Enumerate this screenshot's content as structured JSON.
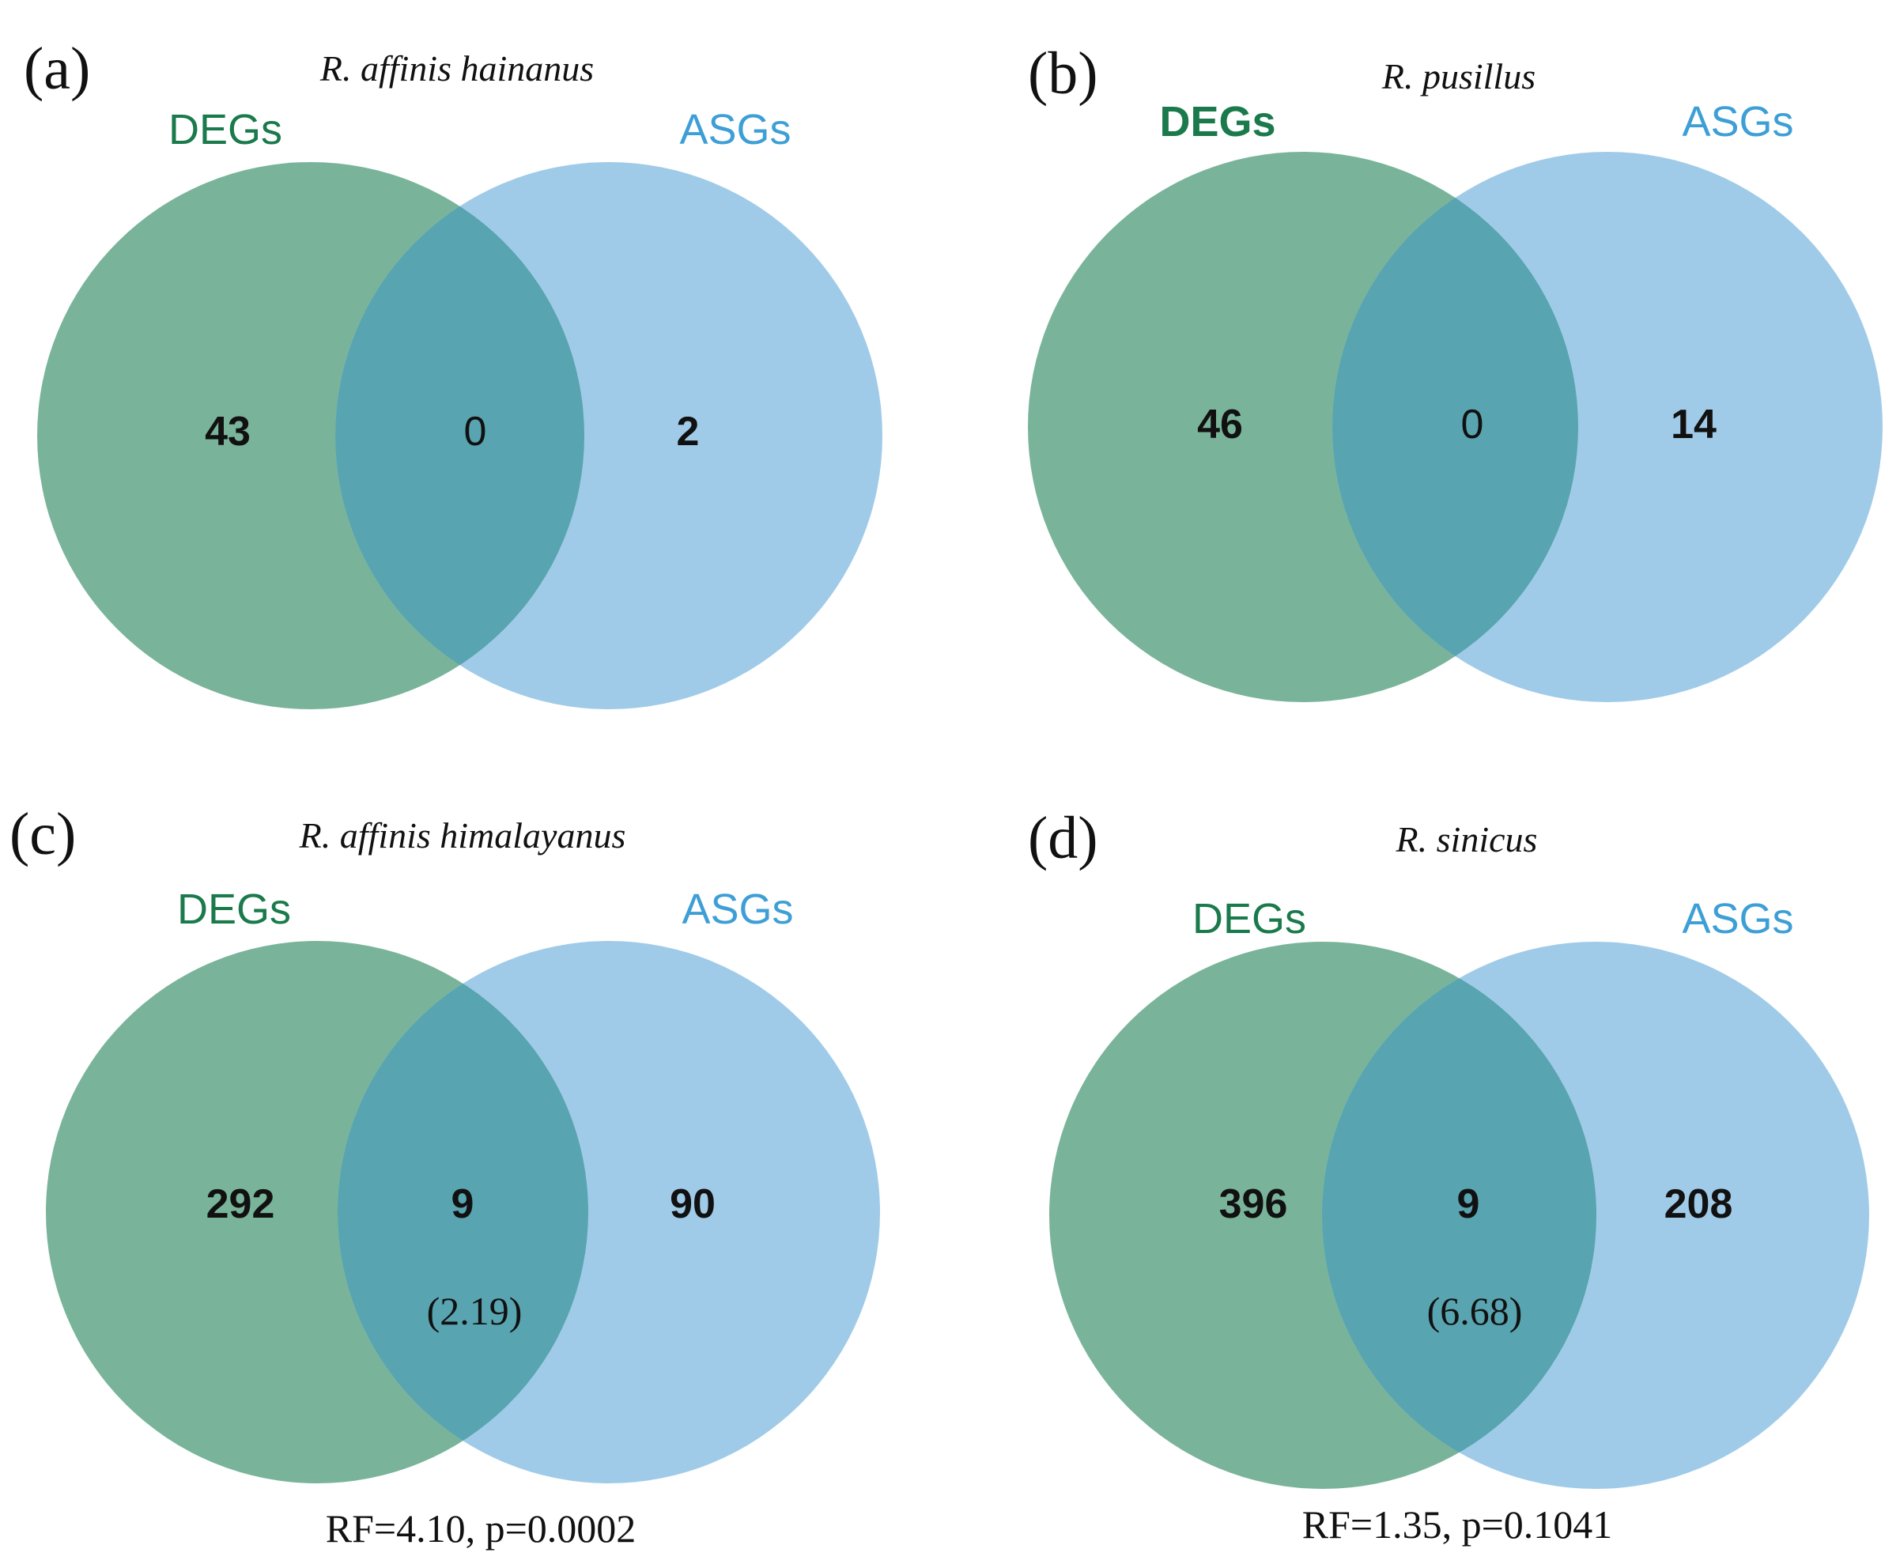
{
  "panels": [
    {
      "letter": "(a)",
      "species": "R. affinis hainanus",
      "left_label": "DEGs",
      "right_label": "ASGs",
      "left_only": "43",
      "overlap": "0",
      "right_only": "2",
      "ratio": "",
      "stats": ""
    },
    {
      "letter": "(b)",
      "species": "R. pusillus",
      "left_label": "DEGs",
      "right_label": "ASGs",
      "left_only": "46",
      "overlap": "0",
      "right_only": "14",
      "ratio": "",
      "stats": ""
    },
    {
      "letter": "(c)",
      "species": "R. affinis himalayanus",
      "left_label": "DEGs",
      "right_label": "ASGs",
      "left_only": "292",
      "overlap": "9",
      "right_only": "90",
      "ratio": "(2.19)",
      "stats": "RF=4.10, p=0.0002"
    },
    {
      "letter": "(d)",
      "species": "R. sinicus",
      "left_label": "DEGs",
      "right_label": "ASGs",
      "left_only": "396",
      "overlap": "9",
      "right_only": "208",
      "ratio": "(6.68)",
      "stats": "RF=1.35, p=0.1041"
    }
  ],
  "colors": {
    "degs_fill": "#79b49a",
    "asgs_fill": "#a0cbe8",
    "overlap_fill": "#58a4b0",
    "degs_text": "#1a7a4c",
    "asgs_text": "#3d9fd6",
    "text": "#111111"
  }
}
